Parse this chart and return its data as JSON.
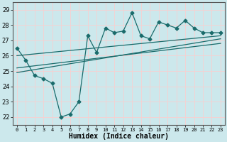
{
  "xlabel": "Humidex (Indice chaleur)",
  "bg_color": "#cce8ec",
  "line_color": "#1a6b6b",
  "grid_color": "#f8d0d0",
  "xlim": [
    -0.5,
    23.5
  ],
  "ylim": [
    21.5,
    29.5
  ],
  "yticks": [
    22,
    23,
    24,
    25,
    26,
    27,
    28,
    29
  ],
  "xticks": [
    0,
    1,
    2,
    3,
    4,
    5,
    6,
    7,
    8,
    9,
    10,
    11,
    12,
    13,
    14,
    15,
    16,
    17,
    18,
    19,
    20,
    21,
    22,
    23
  ],
  "main_x": [
    0,
    1,
    2,
    3,
    4,
    5,
    6,
    7,
    8,
    9,
    10,
    11,
    12,
    13,
    14,
    15,
    16,
    17,
    18,
    19,
    20,
    21,
    22,
    23
  ],
  "main_y": [
    26.5,
    25.7,
    24.7,
    24.5,
    24.2,
    22.0,
    22.2,
    23.0,
    27.3,
    26.2,
    27.8,
    27.5,
    27.6,
    28.8,
    27.3,
    27.1,
    28.2,
    28.0,
    27.8,
    28.3,
    27.8,
    27.5,
    27.5,
    27.5
  ],
  "trend1_x": [
    0,
    23
  ],
  "trend1_y": [
    26.0,
    27.3
  ],
  "trend2_x": [
    0,
    23
  ],
  "trend2_y": [
    25.2,
    26.8
  ],
  "trend3_x": [
    0,
    23
  ],
  "trend3_y": [
    24.9,
    27.1
  ]
}
